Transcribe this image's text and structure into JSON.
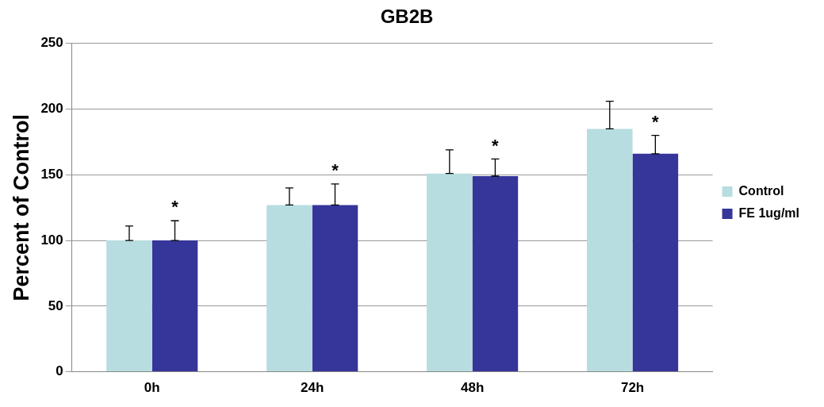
{
  "chart_data": {
    "type": "bar",
    "title": "GB2B",
    "ylabel": "Percent of Control",
    "categories": [
      "0h",
      "24h",
      "48h",
      "72h"
    ],
    "series": [
      {
        "name": "Control",
        "color": "#b7dde0",
        "values": [
          100,
          127,
          151,
          185
        ],
        "errors": [
          [
            100,
            111
          ],
          [
            127,
            140
          ],
          [
            151,
            169
          ],
          [
            185,
            206
          ]
        ]
      },
      {
        "name": "FE 1ug/ml",
        "color": "#35359a",
        "values": [
          100,
          127,
          149,
          166
        ],
        "errors": [
          [
            100,
            115
          ],
          [
            127,
            143
          ],
          [
            149,
            162
          ],
          [
            166,
            180
          ]
        ]
      }
    ],
    "annotations": [
      "*",
      "*",
      "*",
      "*"
    ],
    "ylim": [
      0,
      250
    ],
    "yticks": [
      0,
      50,
      100,
      150,
      200,
      250
    ],
    "grid": "y",
    "legend": "right"
  }
}
